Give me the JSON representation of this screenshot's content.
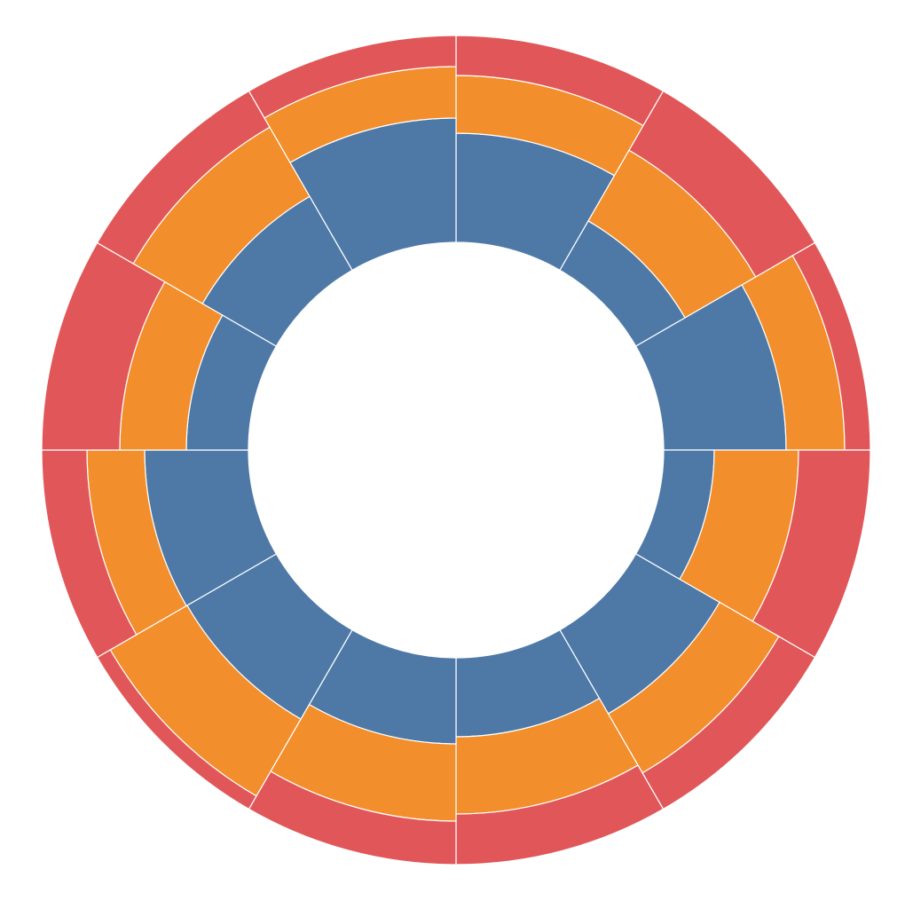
{
  "chart_data": {
    "type": "radial-stacked-bar",
    "categories": [
      null,
      null,
      null,
      null,
      null,
      null,
      null,
      null,
      null,
      null,
      null,
      null
    ],
    "series": [
      {
        "color": "#4e79a7",
        "values": [
          123,
          64,
          138,
          57,
          109,
          89,
          97,
          116,
          117,
          70,
          96,
          140
        ]
      },
      {
        "color": "#f28e2b",
        "values": [
          65,
          92,
          66,
          95,
          77,
          87,
          87,
          100,
          65,
          75,
          90,
          58
        ]
      },
      {
        "color": "#e15759",
        "values": [
          45,
          77,
          29,
          81,
          47,
          57,
          49,
          17,
          51,
          88,
          47,
          35
        ]
      }
    ],
    "ylim": [
      0,
      233
    ]
  }
}
